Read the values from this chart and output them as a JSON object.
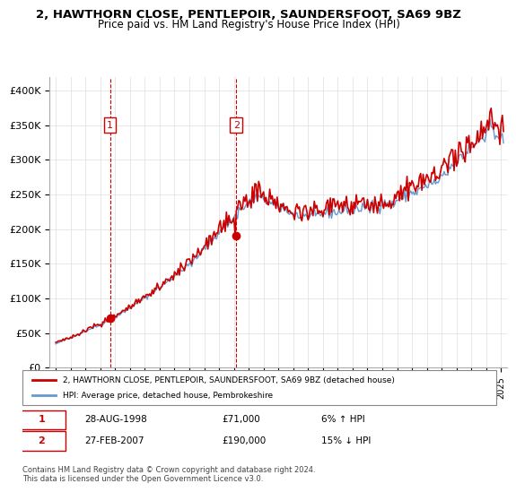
{
  "title": "2, HAWTHORN CLOSE, PENTLEPOIR, SAUNDERSFOOT, SA69 9BZ",
  "subtitle": "Price paid vs. HM Land Registry's House Price Index (HPI)",
  "hpi_label": "HPI: Average price, detached house, Pembrokeshire",
  "property_label": "2, HAWTHORN CLOSE, PENTLEPOIR, SAUNDERSFOOT, SA69 9BZ (detached house)",
  "sale1_date": "28-AUG-1998",
  "sale1_price": 71000,
  "sale1_hpi": "6% ↑ HPI",
  "sale2_date": "27-FEB-2007",
  "sale2_price": 190000,
  "sale2_hpi": "15% ↓ HPI",
  "footer": "Contains HM Land Registry data © Crown copyright and database right 2024.\nThis data is licensed under the Open Government Licence v3.0.",
  "ylim": [
    0,
    420000
  ],
  "yticks": [
    0,
    50000,
    100000,
    150000,
    200000,
    250000,
    300000,
    350000,
    400000
  ],
  "ytick_labels": [
    "£0",
    "£50K",
    "£100K",
    "£150K",
    "£200K",
    "£250K",
    "£300K",
    "£350K",
    "£400K"
  ],
  "hpi_color": "#6699cc",
  "property_color": "#cc0000",
  "sale_marker_color": "#cc0000",
  "vline_color": "#cc0000",
  "background_color": "#ffffff",
  "grid_color": "#dddddd"
}
